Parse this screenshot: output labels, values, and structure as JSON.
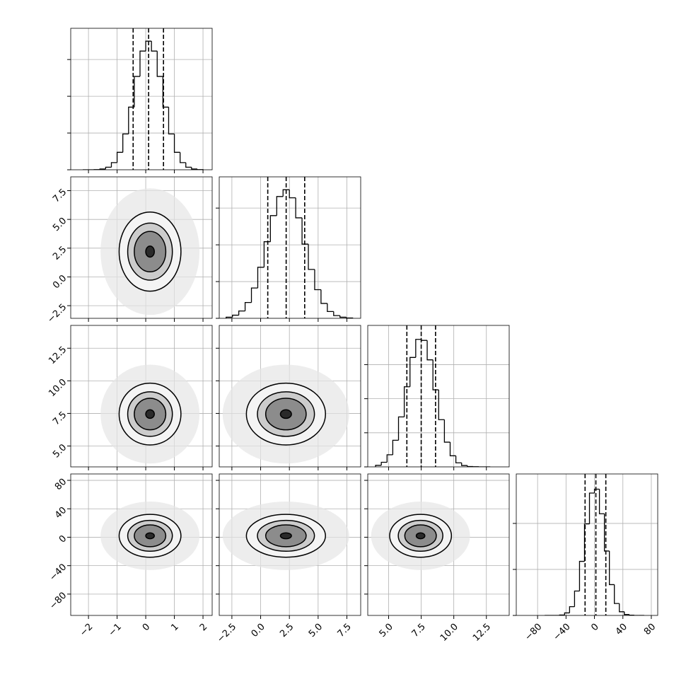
{
  "chart_data": {
    "type": "corner",
    "color": "#000000",
    "grid": true,
    "params": [
      {
        "lim": [
          -2.62,
          2.32
        ],
        "ticks": [
          {
            "value": -2,
            "label": "−2"
          },
          {
            "value": -1,
            "label": "−1"
          },
          0,
          1,
          2
        ],
        "bins": [
          -2.2,
          -2.0,
          -1.8,
          -1.6,
          -1.4,
          -1.2,
          -1.0,
          -0.8,
          -0.6,
          -0.4,
          -0.2,
          0.0,
          0.2,
          0.4,
          0.6,
          0.8,
          1.0,
          1.2,
          1.4,
          1.6,
          1.8,
          2.0
        ],
        "counts": [
          0,
          0,
          1,
          4,
          14,
          39,
          95,
          195,
          341,
          508,
          646,
          700,
          646,
          508,
          341,
          195,
          95,
          39,
          14,
          4,
          1
        ],
        "quantiles": [
          -0.44,
          0.1,
          0.62
        ],
        "hist_ylim": [
          0,
          770
        ],
        "hist_yticks": [
          0,
          200,
          400,
          600
        ]
      },
      {
        "lim": [
          -3.6,
          8.7
        ],
        "ticks": [
          {
            "value": -2.5,
            "label": "−2.5"
          },
          {
            "value": 0,
            "label": "0.0"
          },
          2.5,
          {
            "value": 5,
            "label": "5.0"
          },
          7.5
        ],
        "bins": [
          -3.0,
          -2.45,
          -1.9,
          -1.35,
          -0.8,
          -0.25,
          0.3,
          0.85,
          1.4,
          1.95,
          2.5,
          3.05,
          3.6,
          4.15,
          4.7,
          5.25,
          5.8,
          6.35,
          6.9,
          7.45,
          8.0
        ],
        "counts": [
          6,
          17,
          40,
          86,
          165,
          278,
          417,
          559,
          663,
          700,
          656,
          547,
          404,
          266,
          156,
          81,
          37,
          15,
          6,
          2
        ],
        "quantiles": [
          0.62,
          2.22,
          3.83
        ],
        "hist_ylim": [
          0,
          770
        ],
        "hist_yticks": [
          0,
          200,
          400,
          600
        ]
      },
      {
        "lim": [
          3.4,
          14.25
        ],
        "ticks": [
          {
            "value": 5,
            "label": "5.0"
          },
          7.5,
          {
            "value": 10,
            "label": "10.0"
          },
          12.5
        ],
        "bins": [
          4.0,
          4.44,
          4.88,
          5.32,
          5.76,
          6.2,
          6.64,
          7.08,
          7.52,
          7.96,
          8.4,
          8.84,
          9.28,
          9.72,
          10.16,
          10.6,
          11.04,
          11.48,
          11.92,
          12.36,
          12.8
        ],
        "counts": [
          9,
          27,
          71,
          156,
          293,
          470,
          642,
          748,
          742,
          628,
          452,
          277,
          145,
          65,
          24,
          8,
          2,
          1,
          0,
          0
        ],
        "quantiles": [
          6.4,
          7.5,
          8.6
        ],
        "hist_ylim": [
          0,
          830
        ],
        "hist_yticks": [
          0,
          200,
          400,
          600
        ]
      },
      {
        "lim": [
          -110,
          89
        ],
        "ticks": [
          {
            "value": -80,
            "label": "−80"
          },
          {
            "value": -40,
            "label": "−40"
          },
          0,
          40,
          80
        ],
        "bins": [
          -70,
          -63,
          -56,
          -49,
          -42,
          -35,
          -28,
          -21,
          -14,
          -7,
          0,
          7,
          14,
          21,
          28,
          35,
          42,
          49,
          56,
          63,
          70
        ],
        "counts": [
          0,
          0,
          0,
          2,
          11,
          38,
          106,
          235,
          398,
          532,
          549,
          442,
          280,
          134,
          52,
          16,
          4,
          1,
          0,
          0
        ],
        "quantiles": [
          -13.2,
          2,
          16
        ],
        "hist_ylim": [
          0,
          615
        ],
        "hist_yticks": [
          0,
          200,
          400
        ]
      }
    ],
    "panels": [
      {
        "center": [
          0.15,
          2.2
        ],
        "rx": [
          0.15,
          0.55,
          0.78,
          1.08
        ],
        "ry": [
          0.48,
          1.76,
          2.48,
          3.44
        ]
      },
      {
        "center": [
          0.15,
          7.45
        ],
        "rx": [
          0.15,
          0.55,
          0.78,
          1.08
        ],
        "ry": [
          0.33,
          1.21,
          1.71,
          2.37
        ]
      },
      {
        "center": [
          2.2,
          7.45
        ],
        "rx": [
          0.48,
          1.76,
          2.48,
          3.44
        ],
        "ry": [
          0.33,
          1.21,
          1.71,
          2.37
        ]
      },
      {
        "center": [
          0.15,
          2
        ],
        "rx": [
          0.15,
          0.55,
          0.78,
          1.08
        ],
        "ry": [
          4.2,
          15.4,
          21.7,
          30.1
        ]
      },
      {
        "center": [
          2.2,
          2
        ],
        "rx": [
          0.48,
          1.76,
          2.48,
          3.44
        ],
        "ry": [
          4.2,
          15.4,
          21.7,
          30.1
        ]
      },
      {
        "center": [
          7.45,
          2
        ],
        "rx": [
          0.33,
          1.21,
          1.71,
          2.37
        ],
        "ry": [
          4.2,
          15.4,
          21.7,
          30.1
        ]
      }
    ]
  }
}
